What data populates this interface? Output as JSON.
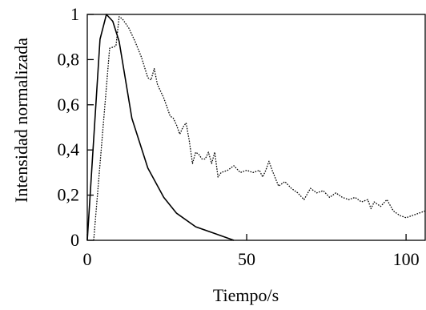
{
  "chart_data": {
    "type": "line",
    "title": "",
    "xlabel": "Tiempo/s",
    "ylabel": "Intensidad normalizada",
    "xlim": [
      0,
      106
    ],
    "ylim": [
      0,
      1
    ],
    "grid": false,
    "x_ticks": [
      0,
      50,
      100
    ],
    "x_tick_labels": [
      "0",
      "50",
      "100"
    ],
    "y_ticks": [
      0,
      0.2,
      0.4,
      0.6,
      0.8,
      1
    ],
    "y_tick_labels": [
      "0",
      "0,2",
      "0,4",
      "0,6",
      "0,8",
      "1"
    ],
    "series": [
      {
        "style": "solid",
        "color": "#000000",
        "x": [
          0,
          4,
          6,
          8,
          10,
          14,
          19,
          24,
          28,
          34,
          40,
          46
        ],
        "y": [
          0,
          0.89,
          1.0,
          0.97,
          0.88,
          0.54,
          0.32,
          0.19,
          0.12,
          0.06,
          0.03,
          0.0
        ]
      },
      {
        "style": "dotted",
        "color": "#000000",
        "x": [
          2,
          7,
          9,
          10,
          11,
          13,
          15,
          17,
          19,
          20,
          21,
          22,
          24,
          26,
          27,
          28,
          29,
          30,
          31,
          32,
          33,
          34,
          35,
          36,
          37,
          38,
          39,
          40,
          41,
          42,
          44,
          46,
          48,
          50,
          52,
          54,
          55,
          56,
          57,
          58,
          60,
          62,
          64,
          66,
          68,
          70,
          72,
          74,
          76,
          78,
          80,
          82,
          84,
          86,
          88,
          89,
          90,
          92,
          94,
          96,
          98,
          100,
          102,
          104,
          106
        ],
        "y": [
          0,
          0.85,
          0.86,
          0.99,
          0.98,
          0.94,
          0.88,
          0.81,
          0.72,
          0.71,
          0.76,
          0.69,
          0.63,
          0.55,
          0.54,
          0.51,
          0.47,
          0.5,
          0.52,
          0.44,
          0.34,
          0.39,
          0.38,
          0.36,
          0.36,
          0.39,
          0.34,
          0.39,
          0.28,
          0.3,
          0.31,
          0.33,
          0.3,
          0.31,
          0.3,
          0.31,
          0.28,
          0.31,
          0.35,
          0.31,
          0.24,
          0.26,
          0.23,
          0.21,
          0.18,
          0.23,
          0.21,
          0.22,
          0.19,
          0.21,
          0.19,
          0.18,
          0.19,
          0.17,
          0.18,
          0.14,
          0.17,
          0.15,
          0.18,
          0.13,
          0.11,
          0.1,
          0.11,
          0.12,
          0.13
        ]
      }
    ]
  }
}
